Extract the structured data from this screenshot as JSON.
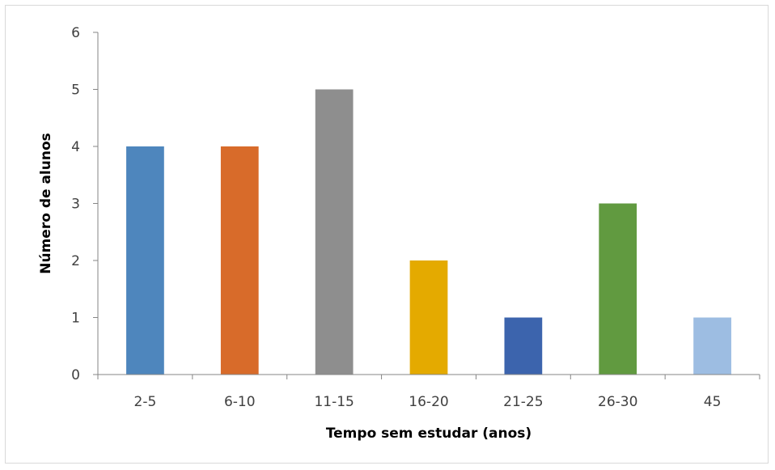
{
  "chart_data": {
    "type": "bar",
    "title": "",
    "xlabel": "Tempo sem estudar (anos)",
    "ylabel": "Número de alunos",
    "ylim": [
      0,
      6
    ],
    "yticks": [
      "0",
      "1",
      "2",
      "3",
      "4",
      "5",
      "6"
    ],
    "categories": [
      "2-5",
      "6-10",
      "11-15",
      "16-20",
      "21-25",
      "26-30",
      "45"
    ],
    "values": [
      4,
      4,
      5,
      2,
      1,
      3,
      1
    ],
    "colors": [
      "#4e86bd",
      "#d86b2a",
      "#8e8e8e",
      "#e4aa00",
      "#3c64ad",
      "#619a40",
      "#9dbde2"
    ],
    "grid": false,
    "legend": "none"
  }
}
